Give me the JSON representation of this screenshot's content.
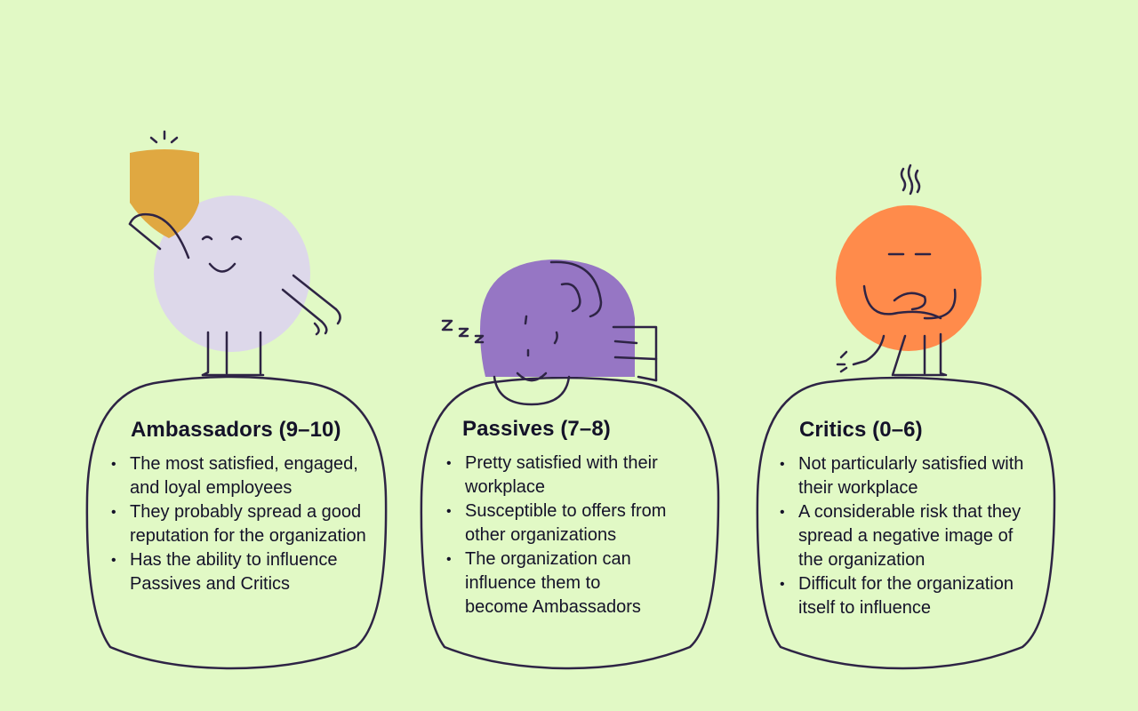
{
  "colors": {
    "background": "#e1f9c5",
    "ink": "#2e2445",
    "ambassador_body": "#ddd8ea",
    "ambassador_badge": "#e0a841",
    "passive_body": "#9676c4",
    "critic_body": "#ff8b4b"
  },
  "icons": {
    "ambassador": "happy-character-raising-badge-icon",
    "passive": "sleeping-character-icon",
    "critic": "grumpy-character-arms-crossed-icon"
  },
  "cards": [
    {
      "title": "Ambassadors (9–10)",
      "bullets": [
        "The most satisfied, engaged, and loyal employees",
        "They probably spread a good reputation for the organization",
        "Has the ability to influence Passives and Critics"
      ]
    },
    {
      "title": "Passives (7–8)",
      "bullets": [
        "Pretty satisfied with their workplace",
        "Susceptible to offers from other organizations",
        "The organization can influence them to become Ambassadors"
      ]
    },
    {
      "title": "Critics (0–6)",
      "bullets": [
        "Not particularly satisfied with their workplace",
        "A considerable risk that they spread a negative image of the organization",
        "Difficult for the organization itself to influence"
      ]
    }
  ]
}
